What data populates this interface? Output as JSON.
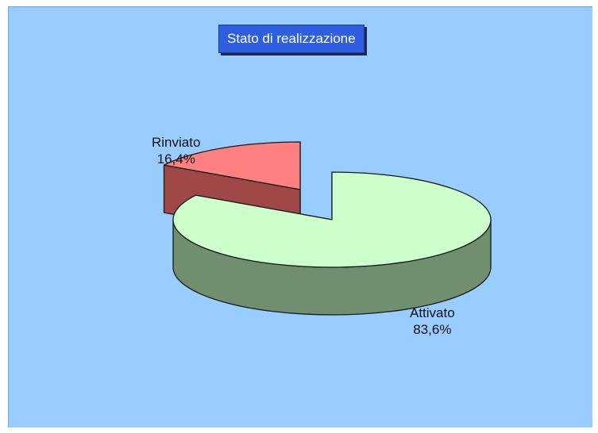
{
  "chart_data": {
    "type": "pie",
    "title": "Stato di realizzazione",
    "slices": [
      {
        "label": "Attivato",
        "value": 83.6,
        "value_label": "83,6%",
        "top_color": "#ccffcc",
        "side_color": "#6f8f6f"
      },
      {
        "label": "Rinviato",
        "value": 16.4,
        "value_label": "16,4%",
        "top_color": "#ff8080",
        "side_color": "#a04848"
      }
    ],
    "style": "3d-exploded",
    "background_color": "#99ccff",
    "legend": "none"
  }
}
